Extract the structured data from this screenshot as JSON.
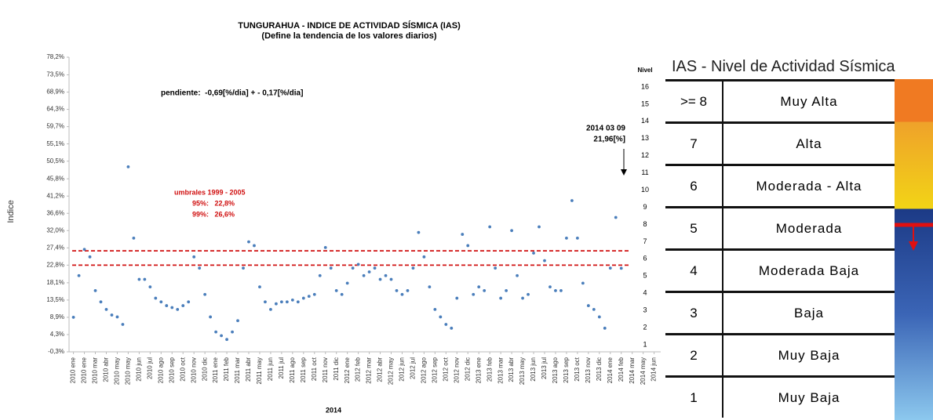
{
  "chart_data": {
    "type": "scatter",
    "title": "TUNGURAHUA - INDICE DE ACTIVIDAD SÍSMICA (IAS)",
    "subtitle": "(Define la tendencia de los valores diarios)",
    "y_label": "Indice",
    "x_label": "2014",
    "y2_label": "Nivel",
    "color": "#4a7ebb",
    "x": [
      0,
      0.5,
      1,
      1.5,
      2,
      2.5,
      3,
      3.5,
      4,
      4.5,
      5,
      5.5,
      6,
      6.5,
      7,
      7.5,
      8,
      8.5,
      9,
      9.5,
      10,
      10.5,
      11,
      11.5,
      12,
      12.5,
      13,
      13.5,
      14,
      14.5,
      15,
      15.5,
      16,
      16.5,
      17,
      17.5,
      18,
      18.5,
      19,
      19.5,
      20,
      20.5,
      21,
      21.5,
      22,
      22.5,
      23,
      23.5,
      24,
      24.5,
      25,
      25.5,
      26,
      26.5,
      27,
      27.5,
      28,
      28.5,
      29,
      29.5,
      30,
      30.5,
      31,
      31.5,
      32,
      32.5,
      33,
      33.5,
      34,
      34.5,
      35,
      35.5,
      36,
      36.5,
      37,
      37.5,
      38,
      38.5,
      39,
      39.5,
      40,
      40.5,
      41,
      41.5,
      42,
      42.5,
      43,
      43.5,
      44,
      44.5,
      45,
      45.5,
      46,
      46.5,
      47,
      47.5,
      48,
      48.5,
      49,
      49.5,
      50
    ],
    "values": [
      8.9,
      20,
      27,
      25,
      16,
      13,
      11,
      9.5,
      9,
      7,
      49,
      30,
      19,
      19,
      17,
      14,
      13,
      12,
      11.5,
      11,
      12,
      13,
      25,
      22,
      15,
      9,
      5,
      4,
      3,
      5,
      8,
      22,
      29,
      28,
      17,
      13,
      11,
      12.5,
      13,
      13,
      13.5,
      13,
      14,
      14.5,
      15,
      20,
      27.5,
      22,
      16,
      15,
      18,
      22,
      23,
      20,
      21,
      22,
      19,
      20,
      19,
      16,
      15,
      16,
      22,
      31.5,
      25,
      17,
      11,
      9,
      7,
      6,
      14,
      31,
      28,
      15,
      17,
      16,
      33,
      22,
      14,
      16,
      32,
      20,
      14,
      15,
      26,
      33,
      24,
      17,
      16,
      16,
      30,
      40,
      30,
      18,
      12,
      11,
      9,
      6,
      22,
      35.5,
      21.96
    ],
    "xlim": [
      -0.4,
      53.6
    ],
    "xticks": [
      {
        "value": 0,
        "label": "2010 ene"
      },
      {
        "value": 1,
        "label": "2010 ene"
      },
      {
        "value": 2,
        "label": "2010 mar"
      },
      {
        "value": 3,
        "label": "2010 abr"
      },
      {
        "value": 4,
        "label": "2010 may"
      },
      {
        "value": 5,
        "label": "2010 may"
      },
      {
        "value": 6,
        "label": "2010 jun"
      },
      {
        "value": 7,
        "label": "2010 jul"
      },
      {
        "value": 8,
        "label": "2010 ago"
      },
      {
        "value": 9,
        "label": "2010 sep"
      },
      {
        "value": 10,
        "label": "2010 oct"
      },
      {
        "value": 11,
        "label": "2010 nov"
      },
      {
        "value": 12,
        "label": "2010 dic"
      },
      {
        "value": 13,
        "label": "2011 ene"
      },
      {
        "value": 14,
        "label": "2011 feb"
      },
      {
        "value": 15,
        "label": "2011 mar"
      },
      {
        "value": 16,
        "label": "2011 abr"
      },
      {
        "value": 17,
        "label": "2011 may"
      },
      {
        "value": 18,
        "label": "2011 jun"
      },
      {
        "value": 19,
        "label": "2011 jul"
      },
      {
        "value": 20,
        "label": "2011 ago"
      },
      {
        "value": 21,
        "label": "2011 sep"
      },
      {
        "value": 22,
        "label": "2011 oct"
      },
      {
        "value": 23,
        "label": "2011 nov"
      },
      {
        "value": 24,
        "label": "2011 dic"
      },
      {
        "value": 25,
        "label": "2012 ene"
      },
      {
        "value": 26,
        "label": "2012 feb"
      },
      {
        "value": 27,
        "label": "2012 mar"
      },
      {
        "value": 28,
        "label": "2012 abr"
      },
      {
        "value": 29,
        "label": "2012 may"
      },
      {
        "value": 30,
        "label": "2012 jun"
      },
      {
        "value": 31,
        "label": "2012 jul"
      },
      {
        "value": 32,
        "label": "2012 ago"
      },
      {
        "value": 33,
        "label": "2012 sep"
      },
      {
        "value": 34,
        "label": "2012 oct"
      },
      {
        "value": 35,
        "label": "2012 nov"
      },
      {
        "value": 36,
        "label": "2012 dic"
      },
      {
        "value": 37,
        "label": "2013 ene"
      },
      {
        "value": 38,
        "label": "2013 feb"
      },
      {
        "value": 39,
        "label": "2013 mar"
      },
      {
        "value": 40,
        "label": "2013 abr"
      },
      {
        "value": 41,
        "label": "2013 may"
      },
      {
        "value": 42,
        "label": "2013 jun"
      },
      {
        "value": 43,
        "label": "2013 jul"
      },
      {
        "value": 44,
        "label": "2013 ago"
      },
      {
        "value": 45,
        "label": "2013 sep"
      },
      {
        "value": 46,
        "label": "2013 oct"
      },
      {
        "value": 47,
        "label": "2013 nov"
      },
      {
        "value": 48,
        "label": "2013 dic"
      },
      {
        "value": 49,
        "label": "2014 ene"
      },
      {
        "value": 50,
        "label": "2014 feb"
      },
      {
        "value": 51,
        "label": "2014 mar"
      },
      {
        "value": 52,
        "label": "2014 may"
      },
      {
        "value": 53,
        "label": "2014 jun"
      }
    ],
    "ylim": [
      -0.3,
      78.2
    ],
    "yticks": [
      {
        "value": -0.3,
        "label": "-0,3%"
      },
      {
        "value": 4.3,
        "label": "4,3%"
      },
      {
        "value": 8.9,
        "label": "8,9%"
      },
      {
        "value": 13.5,
        "label": "13,5%"
      },
      {
        "value": 18.1,
        "label": "18,1%"
      },
      {
        "value": 22.8,
        "label": "22,8%"
      },
      {
        "value": 27.4,
        "label": "27,4%"
      },
      {
        "value": 32.0,
        "label": "32,0%"
      },
      {
        "value": 36.6,
        "label": "36,6%"
      },
      {
        "value": 41.2,
        "label": "41,2%"
      },
      {
        "value": 45.8,
        "label": "45,8%"
      },
      {
        "value": 50.5,
        "label": "50,5%"
      },
      {
        "value": 55.1,
        "label": "55,1%"
      },
      {
        "value": 59.7,
        "label": "59,7%"
      },
      {
        "value": 64.3,
        "label": "64,3%"
      },
      {
        "value": 68.9,
        "label": "68,9%"
      },
      {
        "value": 73.5,
        "label": "73,5%"
      },
      {
        "value": 78.2,
        "label": "78,2%"
      }
    ],
    "y2lim": [
      0.59,
      17.73
    ],
    "y2ticks": [
      1,
      2,
      3,
      4,
      5,
      6,
      7,
      8,
      9,
      10,
      11,
      12,
      13,
      14,
      15,
      16
    ],
    "threshold_color": "#d01010",
    "thresholds_title": "umbrales 1999 - 2005",
    "thresholds": [
      {
        "value": 22.8,
        "label": "95%:   22,8%"
      },
      {
        "value": 26.6,
        "label": "99%:   26,6%"
      }
    ],
    "slope_note": "pendiente:  -0,69[%/dia] + - 0,17[%/dia]",
    "last_date": "2014 03 09",
    "last_value_label": "21,96[%]"
  },
  "level_table": {
    "title": "IAS - Nivel de Actividad Sísmica",
    "rows": [
      [
        ">= 8",
        "Muy Alta"
      ],
      [
        "7",
        "Alta"
      ],
      [
        "6",
        "Moderada - Alta"
      ],
      [
        "5",
        "Moderada"
      ],
      [
        "4",
        "Moderada Baja"
      ],
      [
        "3",
        "Baja"
      ],
      [
        "2",
        "Muy Baja"
      ],
      [
        "1",
        "Muy Baja"
      ]
    ]
  }
}
